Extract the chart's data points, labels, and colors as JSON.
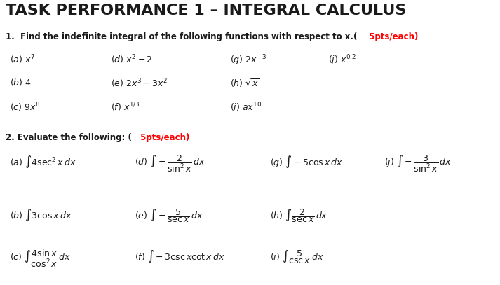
{
  "title": "TASK PERFORMANCE 1 – INTEGRAL CALCULUS",
  "bg_color": "#ffffff",
  "title_color": "#1a1a1a",
  "pts_color": "#ff0000",
  "text_color": "#1a1a1a",
  "figsize": [
    7.13,
    4.07
  ],
  "dpi": 100,
  "title_fs": 16,
  "header_fs": 8.5,
  "item_fs": 9.0,
  "q2_fs": 9.0
}
